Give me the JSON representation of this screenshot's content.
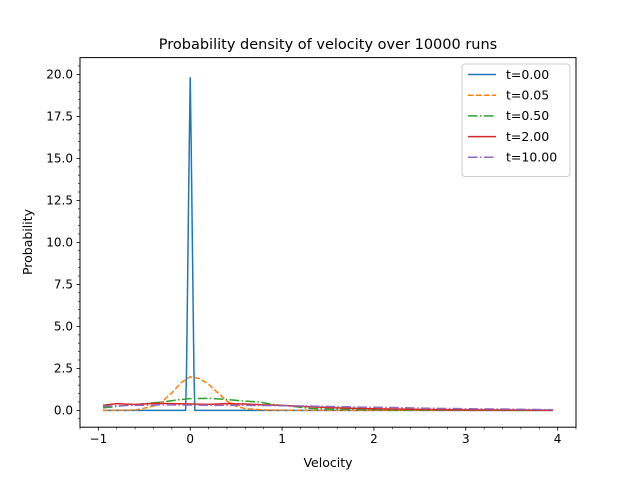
{
  "chart_data": {
    "type": "line",
    "title": "Probability density of velocity over 10000 runs",
    "xlabel": "Velocity",
    "ylabel": "Probability",
    "xlim": [
      -1.2,
      4.2
    ],
    "ylim": [
      -1.0,
      21.0
    ],
    "x_ticks": [
      -1,
      0,
      1,
      2,
      3,
      4
    ],
    "y_ticks": [
      0.0,
      2.5,
      5.0,
      7.5,
      10.0,
      12.5,
      15.0,
      17.5,
      20.0
    ],
    "grid": false,
    "legend_position": "top-right",
    "series": [
      {
        "name": "t=0.00",
        "color": "#1f77b4",
        "dash": "solid",
        "x": [
          -0.95,
          -0.05,
          -0.04,
          -0.01,
          0.0,
          0.01,
          0.04,
          0.05,
          3.95
        ],
        "y": [
          0.0,
          0.0,
          2.5,
          16.0,
          19.8,
          16.0,
          2.5,
          0.0,
          0.0
        ]
      },
      {
        "name": "t=0.05",
        "color": "#ff7f0e",
        "dash": "dashed",
        "x": [
          -0.95,
          -0.6,
          -0.4,
          -0.3,
          -0.2,
          -0.1,
          0.0,
          0.1,
          0.2,
          0.3,
          0.4,
          0.5,
          0.6,
          0.8,
          1.2,
          2.0,
          3.0,
          3.95
        ],
        "y": [
          0.0,
          0.02,
          0.25,
          0.55,
          1.05,
          1.65,
          2.0,
          1.9,
          1.55,
          1.05,
          0.55,
          0.25,
          0.1,
          0.03,
          0.0,
          0.0,
          0.0,
          0.0
        ]
      },
      {
        "name": "t=0.50",
        "color": "#2ca02c",
        "dash": "dashdot",
        "x": [
          -0.95,
          -0.7,
          -0.5,
          -0.3,
          -0.15,
          0.0,
          0.2,
          0.4,
          0.6,
          0.75,
          0.9,
          1.1,
          1.3,
          1.6,
          2.0,
          2.5,
          3.0,
          3.95
        ],
        "y": [
          0.15,
          0.3,
          0.4,
          0.5,
          0.62,
          0.7,
          0.72,
          0.65,
          0.55,
          0.5,
          0.35,
          0.25,
          0.12,
          0.08,
          0.05,
          0.02,
          0.01,
          0.0
        ]
      },
      {
        "name": "t=2.00",
        "color": "#d62728",
        "dash": "solid",
        "x": [
          -0.95,
          -0.8,
          -0.6,
          -0.4,
          -0.2,
          0.0,
          0.2,
          0.4,
          0.6,
          0.8,
          1.0,
          1.3,
          1.6,
          2.0,
          2.5,
          3.0,
          3.5,
          3.95
        ],
        "y": [
          0.3,
          0.4,
          0.35,
          0.42,
          0.4,
          0.38,
          0.36,
          0.4,
          0.38,
          0.33,
          0.3,
          0.22,
          0.15,
          0.1,
          0.06,
          0.03,
          0.02,
          0.01
        ]
      },
      {
        "name": "t=10.00",
        "color": "#9467bd",
        "dash": "dashdot",
        "x": [
          -0.95,
          -0.6,
          -0.3,
          0.0,
          0.3,
          0.6,
          1.0,
          1.4,
          1.8,
          2.2,
          2.6,
          3.0,
          3.4,
          3.7,
          3.95
        ],
        "y": [
          0.25,
          0.3,
          0.33,
          0.32,
          0.3,
          0.3,
          0.28,
          0.25,
          0.2,
          0.17,
          0.13,
          0.1,
          0.08,
          0.06,
          0.04
        ]
      }
    ]
  }
}
